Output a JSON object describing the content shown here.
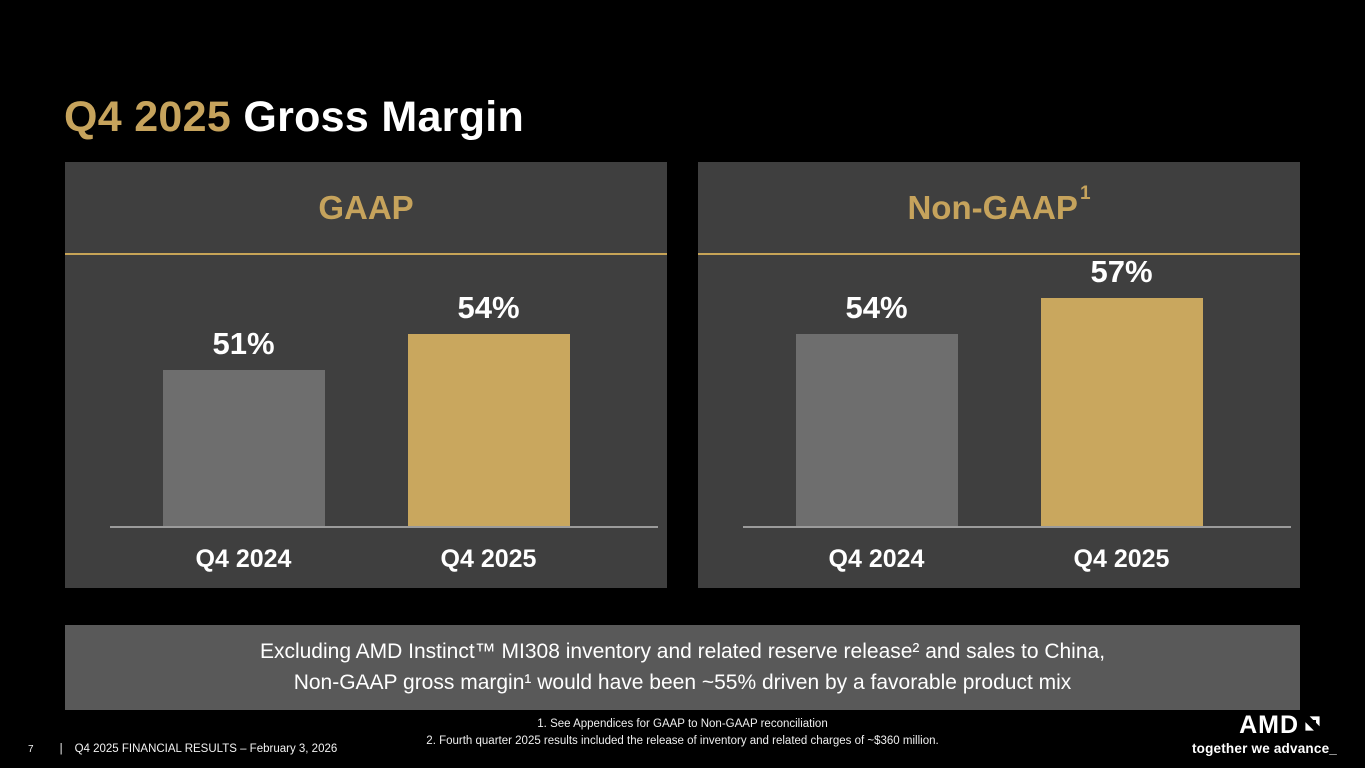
{
  "slide": {
    "title": {
      "accent": "Q4 2025",
      "rest": " Gross Margin"
    }
  },
  "callout": {
    "line1": "Excluding AMD Instinct™ MI308 inventory and related reserve release² and sales to China,",
    "line2": "Non-GAAP gross margin¹ would have been ~55% driven by a favorable product mix"
  },
  "footnotes": [
    "1.  See Appendices for GAAP to Non-GAAP reconciliation",
    "2.  Fourth quarter 2025 results included the release of inventory and related charges of ~$360 million."
  ],
  "footer": {
    "page_number": "7",
    "divider": "|",
    "text": "Q4 2025 FINANCIAL RESULTS – February 3, 2026"
  },
  "brand": {
    "name": "AMD",
    "tagline": "together we advance_"
  },
  "colors": {
    "background": "#000000",
    "accent_gold": "#C6A35C",
    "panel_bg": "#3F3F3F",
    "header_rule_gold": "#C7A457",
    "bar_gray": "#6E6E6E",
    "bar_gold": "#C9A75E",
    "baseline_gray": "#9B9B9B",
    "callout_bg": "#595959"
  },
  "chart_data": [
    {
      "type": "bar",
      "title": "GAAP",
      "categories": [
        "Q4 2024",
        "Q4 2025"
      ],
      "values": [
        51,
        54
      ],
      "value_labels": [
        "51%",
        "54%"
      ],
      "unit": "%",
      "bar_colors": [
        "#6E6E6E",
        "#C9A75E"
      ],
      "ylim": [
        38,
        60
      ],
      "grid": "off",
      "legend": "none"
    },
    {
      "type": "bar",
      "title": "Non-GAAP",
      "title_superscript": "1",
      "categories": [
        "Q4 2024",
        "Q4 2025"
      ],
      "values": [
        54,
        57
      ],
      "value_labels": [
        "54%",
        "57%"
      ],
      "unit": "%",
      "bar_colors": [
        "#6E6E6E",
        "#C9A75E"
      ],
      "ylim": [
        38,
        60
      ],
      "grid": "off",
      "legend": "none"
    }
  ]
}
